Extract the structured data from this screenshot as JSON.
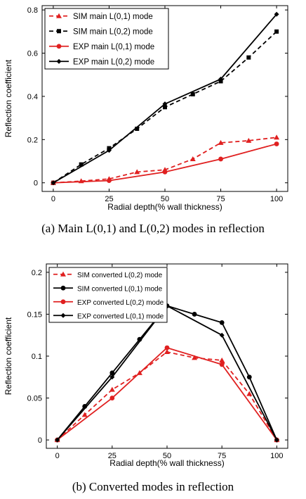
{
  "chart_data": [
    {
      "type": "line",
      "caption": "(a) Main L(0,1) and L(0,2) modes in reflection",
      "xlabel": "Radial depth(% wall thickness)",
      "ylabel": "Reflection coefficient",
      "xlim": [
        -5,
        105
      ],
      "ylim": [
        -0.04,
        0.82
      ],
      "xticks": [
        0,
        25,
        50,
        75,
        100
      ],
      "yticks": [
        0,
        0.2,
        0.4,
        0.6,
        0.8
      ],
      "ytick_labels": [
        "0",
        "0.2",
        "0.4",
        "0.6",
        "0.8"
      ],
      "grid": false,
      "legend_position": "top-left",
      "series": [
        {
          "name": "SIM  main L(0,1) mode",
          "color": "#e02020",
          "dashed": true,
          "marker": "triangle",
          "x": [
            0,
            12.5,
            25,
            37.5,
            50,
            62.5,
            75,
            87.5,
            100
          ],
          "y": [
            0,
            0.008,
            0.018,
            0.05,
            0.06,
            0.11,
            0.185,
            0.195,
            0.21
          ]
        },
        {
          "name": "SIM  main L(0,2) mode",
          "color": "#000000",
          "dashed": true,
          "marker": "square",
          "x": [
            0,
            12.5,
            25,
            37.5,
            50,
            62.5,
            75,
            87.5,
            100
          ],
          "y": [
            0,
            0.085,
            0.16,
            0.25,
            0.35,
            0.41,
            0.47,
            0.58,
            0.7
          ]
        },
        {
          "name": "EXP main L(0,1) mode",
          "color": "#e02020",
          "dashed": false,
          "marker": "dot",
          "x": [
            0,
            25,
            50,
            75,
            100
          ],
          "y": [
            0,
            0.01,
            0.05,
            0.11,
            0.18
          ]
        },
        {
          "name": "EXP main L(0,2) mode",
          "color": "#000000",
          "dashed": false,
          "marker": "diamond",
          "x": [
            0,
            25,
            50,
            75,
            100
          ],
          "y": [
            0,
            0.15,
            0.365,
            0.48,
            0.78
          ]
        }
      ]
    },
    {
      "type": "line",
      "caption": "(b) Converted modes in reflection",
      "xlabel": "Radial depth(% wall thickness)",
      "ylabel": "Reflection coefficient",
      "xlim": [
        -5,
        105
      ],
      "ylim": [
        -0.01,
        0.21
      ],
      "xticks": [
        0,
        25,
        50,
        75,
        100
      ],
      "yticks": [
        0,
        0.05,
        0.1,
        0.15,
        0.2
      ],
      "ytick_labels": [
        "0",
        "0.05",
        "0.1",
        "0.15",
        "0.2"
      ],
      "grid": false,
      "legend_position": "top-left",
      "series": [
        {
          "name": "SIM  converted L(0,2) mode",
          "color": "#e02020",
          "dashed": true,
          "marker": "triangle",
          "x": [
            0,
            12.5,
            25,
            37.5,
            50,
            62.5,
            75,
            87.5,
            100
          ],
          "y": [
            0,
            0.03,
            0.06,
            0.08,
            0.105,
            0.098,
            0.095,
            0.055,
            0
          ]
        },
        {
          "name": "SIM  converted L(0,1) mode",
          "color": "#000000",
          "dashed": false,
          "marker": "dot",
          "x": [
            0,
            12.5,
            25,
            37.5,
            50,
            62.5,
            75,
            87.5,
            100
          ],
          "y": [
            0,
            0.04,
            0.08,
            0.12,
            0.16,
            0.15,
            0.14,
            0.075,
            0
          ]
        },
        {
          "name": "EXP converted L(0,2) mode",
          "color": "#e02020",
          "dashed": false,
          "marker": "dot",
          "x": [
            0,
            25,
            50,
            75,
            100
          ],
          "y": [
            0,
            0.05,
            0.11,
            0.09,
            0
          ]
        },
        {
          "name": "EXP converted L(0,1) mode",
          "color": "#000000",
          "dashed": false,
          "marker": "diamond",
          "x": [
            0,
            25,
            50,
            75,
            100
          ],
          "y": [
            0,
            0.075,
            0.16,
            0.125,
            0
          ]
        }
      ]
    }
  ]
}
